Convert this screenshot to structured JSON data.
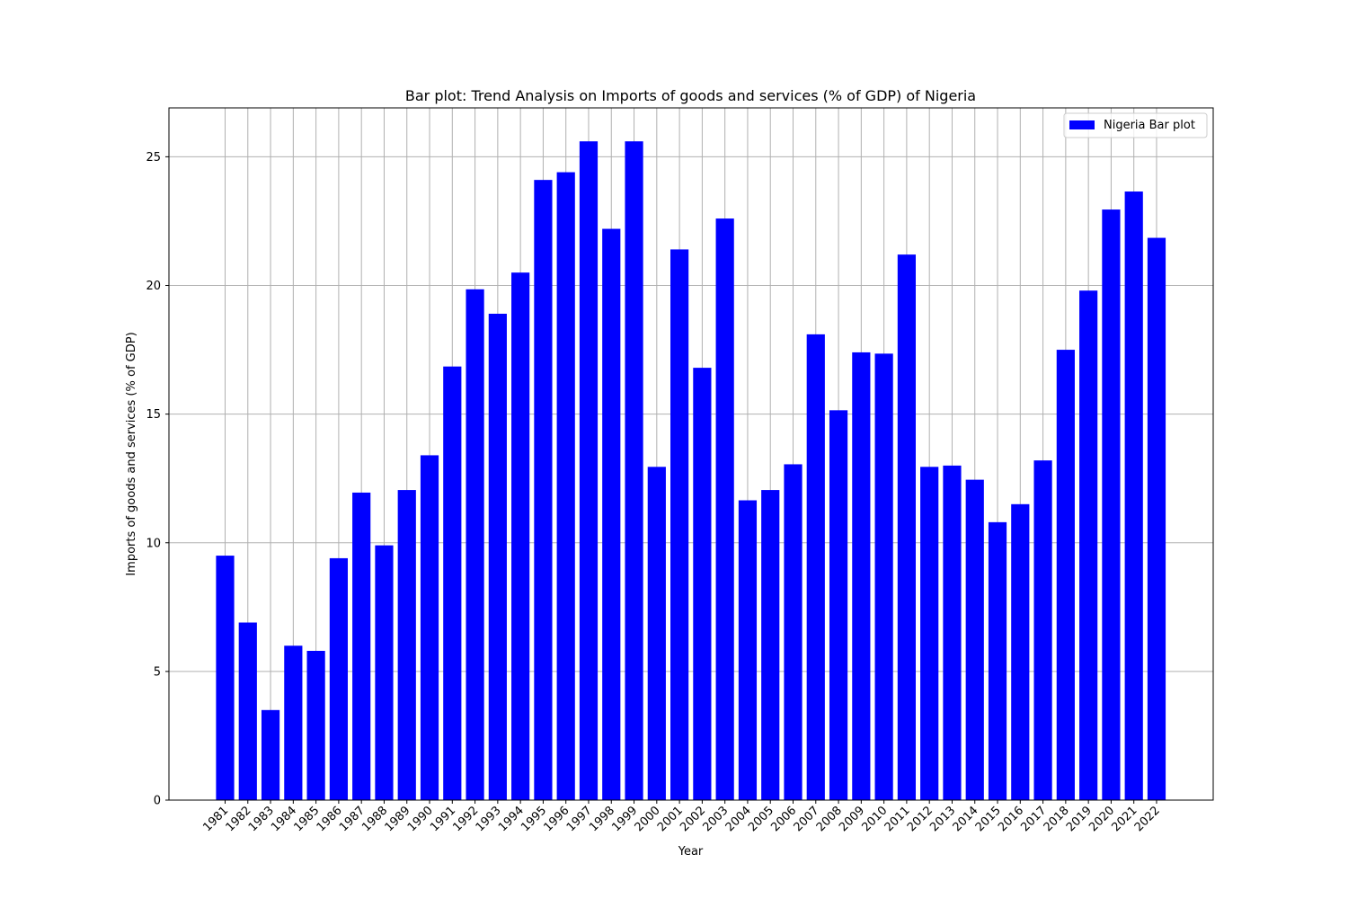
{
  "chart_data": {
    "type": "bar",
    "title": "Bar plot: Trend Analysis on Imports of goods and services (% of GDP) of Nigeria",
    "xlabel": "Year",
    "ylabel": "Imports of goods and services (% of GDP)",
    "ylim": [
      0,
      26.9
    ],
    "yticks": [
      0,
      5,
      10,
      15,
      20,
      25
    ],
    "grid": true,
    "legend_position": "top-right",
    "categories": [
      "1981",
      "1982",
      "1983",
      "1984",
      "1985",
      "1986",
      "1987",
      "1988",
      "1989",
      "1990",
      "1991",
      "1992",
      "1993",
      "1994",
      "1995",
      "1996",
      "1997",
      "1998",
      "1999",
      "2000",
      "2001",
      "2002",
      "2003",
      "2004",
      "2005",
      "2006",
      "2007",
      "2008",
      "2009",
      "2010",
      "2011",
      "2012",
      "2013",
      "2014",
      "2015",
      "2016",
      "2017",
      "2018",
      "2019",
      "2020",
      "2021",
      "2022"
    ],
    "series": [
      {
        "name": "Nigeria Bar plot",
        "color": "#0000ff",
        "values": [
          9.5,
          6.9,
          3.5,
          6.0,
          5.8,
          9.4,
          11.95,
          9.9,
          12.05,
          13.4,
          16.85,
          19.85,
          18.9,
          20.5,
          24.1,
          24.4,
          25.6,
          22.2,
          25.6,
          12.95,
          21.4,
          16.8,
          22.6,
          11.65,
          12.05,
          13.05,
          18.1,
          15.15,
          17.4,
          17.35,
          21.2,
          12.95,
          13.0,
          12.45,
          10.8,
          11.5,
          13.2,
          17.5,
          19.8,
          22.95,
          23.65,
          21.85
        ]
      }
    ]
  }
}
